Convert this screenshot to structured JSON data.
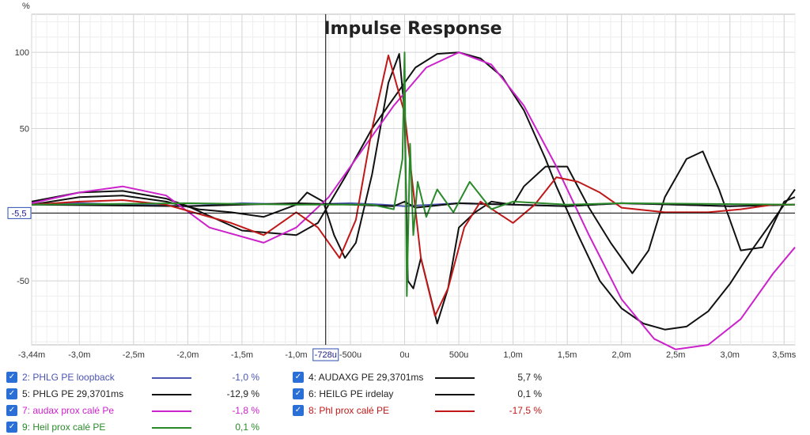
{
  "chart_data": {
    "type": "line",
    "title": "Impulse Response",
    "ylabel": "%",
    "xlim": [
      -3.44,
      3.6
    ],
    "ylim": [
      -92,
      125
    ],
    "x_ticks": [
      {
        "v": -3.44,
        "label": "-3,44m"
      },
      {
        "v": -3.0,
        "label": "-3,0m"
      },
      {
        "v": -2.5,
        "label": "-2,5m"
      },
      {
        "v": -2.0,
        "label": "-2,0m"
      },
      {
        "v": -1.5,
        "label": "-1,5m"
      },
      {
        "v": -1.0,
        "label": "-1,0m"
      },
      {
        "v": -0.5,
        "label": "-500u"
      },
      {
        "v": 0.0,
        "label": "0u"
      },
      {
        "v": 0.5,
        "label": "500u"
      },
      {
        "v": 1.0,
        "label": "1,0m"
      },
      {
        "v": 1.5,
        "label": "1,5m"
      },
      {
        "v": 2.0,
        "label": "2,0m"
      },
      {
        "v": 2.5,
        "label": "2,5m"
      },
      {
        "v": 3.0,
        "label": "3,0m"
      },
      {
        "v": 3.5,
        "label": "3,5ms"
      }
    ],
    "y_ticks": [
      {
        "v": 100,
        "label": "100"
      },
      {
        "v": 50,
        "label": "50"
      },
      {
        "v": -50,
        "label": "-50"
      }
    ],
    "cursor": {
      "x": -0.728,
      "y": -5.5,
      "x_label": "-728u",
      "y_label": "-5,5"
    },
    "series": [
      {
        "name": "2: PHLG PE loopback",
        "color": "#4b55b0",
        "value": "-1,0 %",
        "x": [
          -3.44,
          -3.0,
          -2.5,
          -2.0,
          -1.5,
          -1.0,
          -0.5,
          -0.2,
          0.0,
          0.5,
          1.0,
          1.5,
          2.0,
          2.5,
          3.0,
          3.6
        ],
        "y": [
          0,
          1,
          0,
          -1,
          1,
          0,
          1,
          0,
          -1,
          1,
          0,
          -1,
          1,
          0,
          -1,
          0
        ]
      },
      {
        "name": "4: AUDAXG PE 29,3701ms",
        "color": "#111111",
        "value": "5,7 %",
        "x": [
          -3.44,
          -3.0,
          -2.6,
          -2.2,
          -2.0,
          -1.5,
          -1.0,
          -0.8,
          -0.55,
          -0.3,
          -0.1,
          0.1,
          0.3,
          0.5,
          0.7,
          0.9,
          1.1,
          1.3,
          1.4,
          1.6,
          1.8,
          2.0,
          2.2,
          2.4,
          2.6,
          2.8,
          3.0,
          3.2,
          3.4,
          3.6
        ],
        "y": [
          2,
          8,
          9,
          4,
          -1,
          -17,
          -20,
          -12,
          18,
          50,
          70,
          90,
          99,
          100,
          96,
          84,
          62,
          30,
          12,
          -20,
          -50,
          -68,
          -78,
          -82,
          -80,
          -70,
          -52,
          -30,
          -10,
          10
        ]
      },
      {
        "name": "5: PHLG PE 29,3701ms",
        "color": "#111111",
        "value": "-12,9 %",
        "x": [
          -3.44,
          -3.0,
          -2.6,
          -2.2,
          -1.9,
          -1.6,
          -1.3,
          -1.0,
          -0.9,
          -0.75,
          -0.65,
          -0.55,
          -0.45,
          -0.3,
          -0.15,
          -0.05,
          0.0,
          0.03,
          0.08,
          0.15,
          0.3,
          0.4,
          0.5,
          0.65,
          0.8,
          1.0,
          1.1,
          1.3,
          1.5,
          1.7,
          1.9,
          2.1,
          2.25,
          2.4,
          2.6,
          2.75,
          2.9,
          3.1,
          3.3,
          3.5,
          3.6
        ],
        "y": [
          0,
          5,
          6,
          2,
          -3,
          -5,
          -8,
          0,
          8,
          2,
          -20,
          -35,
          -25,
          20,
          80,
          99,
          60,
          -50,
          -55,
          -35,
          -78,
          -55,
          -15,
          -5,
          2,
          0,
          12,
          25,
          25,
          -2,
          -25,
          -45,
          -30,
          5,
          30,
          35,
          10,
          -30,
          -28,
          2,
          5
        ]
      },
      {
        "name": "6: HEILG PE irdelay",
        "color": "#111111",
        "value": "0,1 %",
        "x": [
          -3.44,
          -2.0,
          -1.0,
          -0.5,
          -0.1,
          0.0,
          0.1,
          0.5,
          1.0,
          1.5,
          2.0,
          2.5,
          3.0,
          3.6
        ],
        "y": [
          0,
          -1,
          1,
          0,
          -1,
          2,
          -2,
          1,
          0,
          -1,
          1,
          0,
          -1,
          0
        ]
      },
      {
        "name": "7: audax prox calé Pe",
        "color": "#cc22cc",
        "value": "-1,8 %",
        "x": [
          -3.44,
          -3.0,
          -2.6,
          -2.2,
          -1.8,
          -1.3,
          -1.0,
          -0.7,
          -0.4,
          -0.1,
          0.2,
          0.5,
          0.8,
          1.1,
          1.4,
          1.7,
          2.0,
          2.3,
          2.5,
          2.8,
          3.1,
          3.4,
          3.6
        ],
        "y": [
          1,
          8,
          12,
          6,
          -15,
          -25,
          -15,
          5,
          35,
          65,
          90,
          100,
          92,
          65,
          25,
          -20,
          -62,
          -88,
          -95,
          -92,
          -75,
          -45,
          -28
        ]
      },
      {
        "name": "8: Phl prox calé PE",
        "color": "#c01818",
        "value": "-17,5 %",
        "x": [
          -3.44,
          -3.0,
          -2.6,
          -2.2,
          -2.0,
          -1.6,
          -1.3,
          -1.0,
          -0.8,
          -0.6,
          -0.45,
          -0.3,
          -0.15,
          0.0,
          0.15,
          0.28,
          0.4,
          0.55,
          0.7,
          0.85,
          1.0,
          1.2,
          1.4,
          1.6,
          1.8,
          2.0,
          2.4,
          2.8,
          3.1,
          3.4,
          3.6
        ],
        "y": [
          0,
          2,
          3,
          0,
          -4,
          -12,
          -20,
          -5,
          -15,
          -35,
          -10,
          50,
          98,
          60,
          -35,
          -73,
          -55,
          -15,
          2,
          -5,
          -12,
          0,
          18,
          15,
          8,
          -2,
          -5,
          -5,
          -3,
          0,
          0
        ]
      },
      {
        "name": "9: Heil prox calé PE",
        "color": "#2a8a2a",
        "value": "0,1 %",
        "x": [
          -3.44,
          -2.0,
          -1.0,
          -0.3,
          -0.1,
          -0.02,
          0.0,
          0.02,
          0.05,
          0.08,
          0.12,
          0.2,
          0.3,
          0.45,
          0.6,
          0.8,
          1.0,
          1.5,
          2.0,
          3.6
        ],
        "y": [
          0,
          1,
          0,
          0,
          -3,
          30,
          100,
          -60,
          40,
          -20,
          15,
          -8,
          10,
          -5,
          15,
          -3,
          2,
          0,
          1,
          0
        ]
      }
    ]
  },
  "legend_order": [
    0,
    1,
    2,
    3,
    4,
    5,
    6
  ]
}
